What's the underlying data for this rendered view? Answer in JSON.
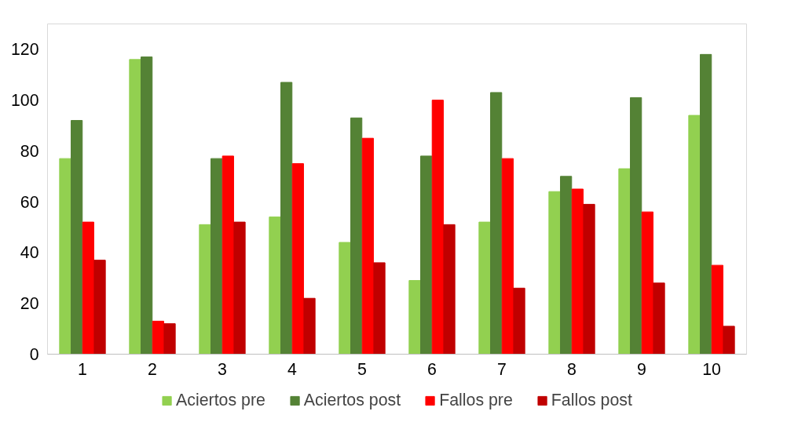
{
  "chart_data": {
    "type": "bar",
    "categories": [
      "1",
      "2",
      "3",
      "4",
      "5",
      "6",
      "7",
      "8",
      "9",
      "10"
    ],
    "series": [
      {
        "name": "Aciertos pre",
        "color": "#92d050",
        "values": [
          77,
          116,
          51,
          54,
          44,
          29,
          52,
          64,
          73,
          94
        ]
      },
      {
        "name": "Aciertos post",
        "color": "#548235",
        "values": [
          92,
          117,
          77,
          107,
          93,
          78,
          103,
          70,
          101,
          118
        ]
      },
      {
        "name": "Fallos pre",
        "color": "#ff0000",
        "values": [
          52,
          13,
          78,
          75,
          85,
          100,
          77,
          65,
          56,
          35
        ]
      },
      {
        "name": "Fallos post",
        "color": "#c00000",
        "values": [
          37,
          12,
          52,
          22,
          36,
          51,
          26,
          59,
          28,
          11
        ]
      }
    ],
    "ylim": [
      0,
      130
    ],
    "yticks": [
      0,
      20,
      40,
      60,
      80,
      100,
      120
    ],
    "grid": false,
    "legend": "bottom"
  }
}
